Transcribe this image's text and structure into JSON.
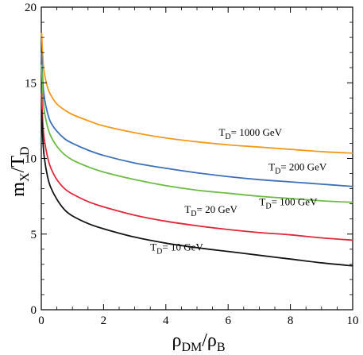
{
  "chart_data": {
    "type": "line",
    "xlabel": {
      "main": "ρ",
      "sub1": "DM",
      "slash": "/ρ",
      "sub2": "B"
    },
    "ylabel": {
      "main": "m",
      "sub1": "X",
      "slash": "/T",
      "sub2": "D"
    },
    "xlim": [
      0,
      10
    ],
    "ylim": [
      0,
      20
    ],
    "xticks": [
      "0",
      "2",
      "4",
      "6",
      "8",
      "10"
    ],
    "yticks": [
      "0",
      "5",
      "10",
      "15",
      "20"
    ],
    "grid": false,
    "series": [
      {
        "label": {
          "prefix": "T",
          "sub": "D",
          "rest": "= 1000 GeV",
          "x": 5.7,
          "y": 11.5
        },
        "color": "#f39a1c",
        "x": [
          0.01,
          0.05,
          0.1,
          0.2,
          0.3,
          0.5,
          0.75,
          1,
          1.5,
          2,
          3,
          4,
          5,
          6,
          7,
          8,
          9,
          10
        ],
        "y": [
          18.3,
          16.6,
          15.6,
          14.7,
          14.2,
          13.6,
          13.2,
          12.9,
          12.5,
          12.15,
          11.7,
          11.35,
          11.1,
          10.9,
          10.75,
          10.6,
          10.45,
          10.35
        ]
      },
      {
        "label": {
          "prefix": "T",
          "sub": "D",
          "rest": "= 200 GeV",
          "x": 7.3,
          "y": 9.2
        },
        "color": "#3e70b8",
        "x": [
          0.01,
          0.05,
          0.1,
          0.2,
          0.3,
          0.5,
          0.75,
          1,
          1.5,
          2,
          3,
          4,
          5,
          6,
          7,
          8,
          9,
          10
        ],
        "y": [
          17.0,
          15.0,
          14.0,
          13.0,
          12.4,
          11.8,
          11.3,
          11.0,
          10.55,
          10.2,
          9.7,
          9.35,
          9.05,
          8.8,
          8.6,
          8.45,
          8.3,
          8.15
        ]
      },
      {
        "label": {
          "prefix": "T",
          "sub": "D",
          "rest": "= 100 GeV",
          "x": 7.0,
          "y": 6.9
        },
        "color": "#6dbb45",
        "x": [
          0.01,
          0.05,
          0.1,
          0.2,
          0.3,
          0.5,
          0.75,
          1,
          1.5,
          2,
          3,
          4,
          5,
          6,
          7,
          8,
          9,
          10
        ],
        "y": [
          16.2,
          14.2,
          13.1,
          12.1,
          11.5,
          10.8,
          10.25,
          9.9,
          9.45,
          9.1,
          8.6,
          8.2,
          7.9,
          7.7,
          7.5,
          7.35,
          7.2,
          7.1
        ]
      },
      {
        "label": {
          "prefix": "T",
          "sub": "D",
          "rest": "= 20 GeV",
          "x": 4.6,
          "y": 6.4
        },
        "color": "#e0283a",
        "x": [
          0.01,
          0.05,
          0.1,
          0.2,
          0.3,
          0.5,
          0.75,
          1,
          1.5,
          2,
          3,
          4,
          5,
          6,
          7,
          8,
          9,
          10
        ],
        "y": [
          14.3,
          12.3,
          11.2,
          10.1,
          9.4,
          8.6,
          8.0,
          7.65,
          7.15,
          6.8,
          6.25,
          5.85,
          5.55,
          5.3,
          5.1,
          4.95,
          4.75,
          4.6
        ]
      },
      {
        "label": {
          "prefix": "T",
          "sub": "D",
          "rest": "= 10 GeV",
          "x": 3.5,
          "y": 3.9
        },
        "color": "#141414",
        "x": [
          0.01,
          0.05,
          0.1,
          0.2,
          0.3,
          0.5,
          0.75,
          1,
          1.5,
          2,
          3,
          4,
          5,
          6,
          7,
          8,
          9,
          10
        ],
        "y": [
          13.2,
          11.2,
          10.0,
          8.8,
          8.1,
          7.3,
          6.6,
          6.2,
          5.7,
          5.35,
          4.8,
          4.4,
          4.1,
          3.85,
          3.6,
          3.35,
          3.1,
          2.9
        ]
      }
    ]
  }
}
